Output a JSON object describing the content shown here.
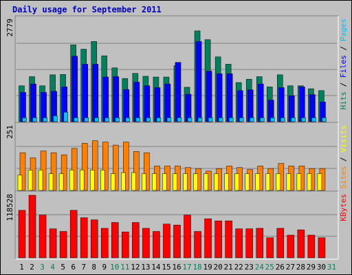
{
  "chart_data": [
    {
      "type": "bar",
      "title": "Daily usage for September 2011",
      "ymax_label": "2779",
      "ymax": 2779,
      "days": [
        "1",
        "2",
        "3",
        "4",
        "5",
        "6",
        "7",
        "8",
        "9",
        "10",
        "11",
        "12",
        "13",
        "14",
        "15",
        "16",
        "17",
        "18",
        "19",
        "20",
        "21",
        "22",
        "23",
        "24",
        "25",
        "26",
        "27",
        "28",
        "29",
        "30",
        "31"
      ],
      "weekend_days": [
        "3",
        "4",
        "10",
        "11",
        "17",
        "18",
        "24",
        "25",
        "31"
      ],
      "grid": true,
      "legend": "right (vertical)",
      "series": [
        {
          "name": "Hits",
          "color": "#00805c",
          "values": [
            980,
            1230,
            980,
            1280,
            1290,
            2100,
            1980,
            2190,
            1800,
            1470,
            1180,
            1320,
            1240,
            1220,
            1220,
            1530,
            940,
            2480,
            2240,
            1770,
            1570,
            1070,
            1160,
            1230,
            950,
            1280,
            980,
            980,
            900,
            850,
            null
          ]
        },
        {
          "name": "Files",
          "color": "#0000ff",
          "values": [
            800,
            1030,
            800,
            830,
            950,
            1790,
            1570,
            1570,
            1220,
            1230,
            880,
            1080,
            980,
            930,
            1030,
            1620,
            750,
            2190,
            1380,
            1310,
            1310,
            850,
            870,
            1030,
            590,
            930,
            710,
            950,
            740,
            540,
            null
          ]
        },
        {
          "name": "Pages",
          "color": "#00c0ff",
          "values": [
            110,
            110,
            110,
            160,
            260,
            110,
            110,
            110,
            110,
            110,
            110,
            110,
            110,
            110,
            110,
            110,
            110,
            110,
            110,
            110,
            110,
            110,
            110,
            110,
            110,
            110,
            110,
            110,
            110,
            110,
            null
          ]
        }
      ]
    },
    {
      "type": "bar",
      "ymax_label": "251",
      "ymax": 251,
      "series": [
        {
          "name": "Sites",
          "color": "#ff8000",
          "values": [
            148,
            128,
            155,
            148,
            140,
            165,
            185,
            195,
            190,
            178,
            190,
            153,
            148,
            96,
            96,
            96,
            90,
            86,
            76,
            86,
            96,
            90,
            82,
            96,
            86,
            106,
            96,
            96,
            86,
            86,
            null
          ]
        },
        {
          "name": "Visits",
          "color": "#ffff00",
          "values": [
            60,
            80,
            80,
            66,
            66,
            80,
            80,
            80,
            80,
            66,
            70,
            70,
            66,
            66,
            66,
            66,
            66,
            66,
            66,
            66,
            66,
            66,
            66,
            66,
            66,
            66,
            66,
            66,
            66,
            66,
            null
          ]
        }
      ]
    },
    {
      "type": "bar",
      "ymax_label": "118528",
      "ymax": 118528,
      "series": [
        {
          "name": "KBytes",
          "color": "#ff0000",
          "values": [
            90000,
            118528,
            81000,
            55000,
            50000,
            90000,
            76000,
            72000,
            56000,
            67000,
            49000,
            67000,
            56000,
            50000,
            64000,
            62000,
            81000,
            50000,
            74000,
            70000,
            70000,
            55000,
            55000,
            56000,
            38000,
            56000,
            43000,
            53000,
            43000,
            38000,
            null
          ]
        }
      ]
    }
  ]
}
